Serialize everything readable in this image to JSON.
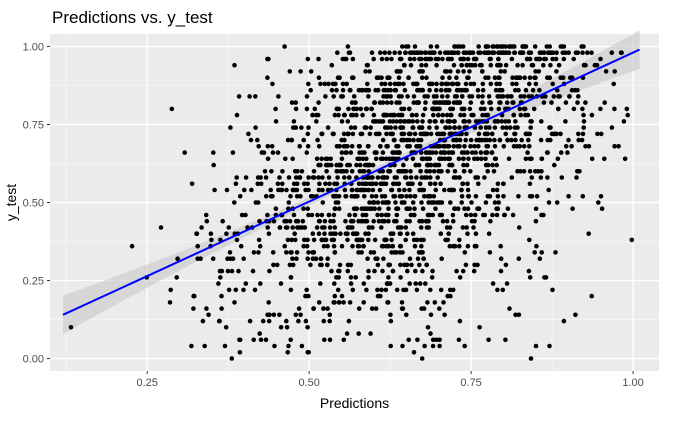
{
  "chart_data": {
    "type": "scatter",
    "title": "Predictions vs. y_test",
    "xlabel": "Predictions",
    "ylabel": "y_test",
    "xlim": [
      0.1,
      1.04
    ],
    "ylim": [
      -0.04,
      1.04
    ],
    "x_ticks": [
      0.25,
      0.5,
      0.75,
      1.0
    ],
    "x_tick_labels": [
      "0.25",
      "0.50",
      "0.75",
      "1.00"
    ],
    "y_ticks": [
      0.0,
      0.25,
      0.5,
      0.75,
      1.0
    ],
    "y_tick_labels": [
      "0.00",
      "0.25",
      "0.50",
      "0.75",
      "1.00"
    ],
    "grid": true,
    "panel_color": "#ebebeb",
    "point_color": "#000000",
    "fit_color": "#0000ff",
    "band_color": "#c8c8c8",
    "fit_line": {
      "x": [
        0.12,
        1.01
      ],
      "y": [
        0.14,
        0.99
      ]
    },
    "point_count_approx": 2000,
    "density_note": "points concentrated between x 0.35-0.95 and y 0.5-1.0, with sparse points at low x"
  }
}
